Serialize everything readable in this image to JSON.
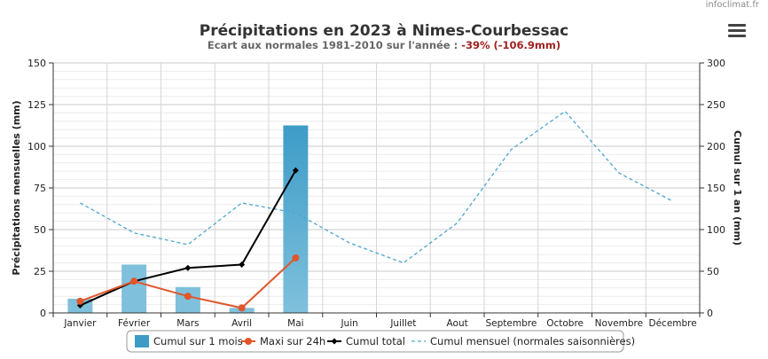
{
  "watermark": "infoclimat.fr",
  "colors": {
    "bar": "#7fc0dc",
    "bar_highlight": "#3d9cc7",
    "maxi": "#e1562b",
    "cumul": "#000000",
    "normal": "#4ea6cc",
    "ecart_value": "#a02020",
    "grid": "#dcdcdc"
  },
  "chart_data": {
    "type": "bar",
    "title": "Précipitations en 2023 à Nimes-Courbessac",
    "subtitle_prefix": "Ecart aux normales 1981-2010 sur l'année : ",
    "subtitle_value": "-39% (-106.9mm)",
    "categories": [
      "Janvier",
      "Février",
      "Mars",
      "Avril",
      "Mai",
      "Juin",
      "Juillet",
      "Aout",
      "Septembre",
      "Octobre",
      "Novembre",
      "Décembre"
    ],
    "y_left": {
      "label": "Précipitations mensuelles (mm)",
      "min": 0,
      "max": 150,
      "ticks": [
        0,
        25,
        50,
        75,
        100,
        125,
        150
      ]
    },
    "y_right": {
      "label": "Cumul sur 1 an (mm)",
      "min": 0,
      "max": 300,
      "ticks": [
        0,
        50,
        100,
        150,
        200,
        250,
        300
      ]
    },
    "series": [
      {
        "name": "Cumul sur 1 mois",
        "type": "bar",
        "axis": "left",
        "values": [
          8.5,
          29,
          15.5,
          3,
          112.5,
          null,
          null,
          null,
          null,
          null,
          null,
          null
        ]
      },
      {
        "name": "Maxi sur 24h",
        "type": "line",
        "axis": "left",
        "values": [
          7,
          19,
          10,
          3,
          33,
          null,
          null,
          null,
          null,
          null,
          null,
          null
        ]
      },
      {
        "name": "Cumul total",
        "type": "line",
        "axis": "right",
        "values": [
          9,
          38,
          54,
          58,
          171,
          null,
          null,
          null,
          null,
          null,
          null,
          null
        ]
      },
      {
        "name": "Cumul mensuel (normales saisonnières)",
        "type": "line-dashed",
        "axis": "left",
        "values": [
          66,
          48,
          41,
          66,
          60,
          42,
          30,
          54,
          98,
          121,
          84,
          67
        ]
      }
    ],
    "grid": true,
    "legend_position": "bottom"
  }
}
